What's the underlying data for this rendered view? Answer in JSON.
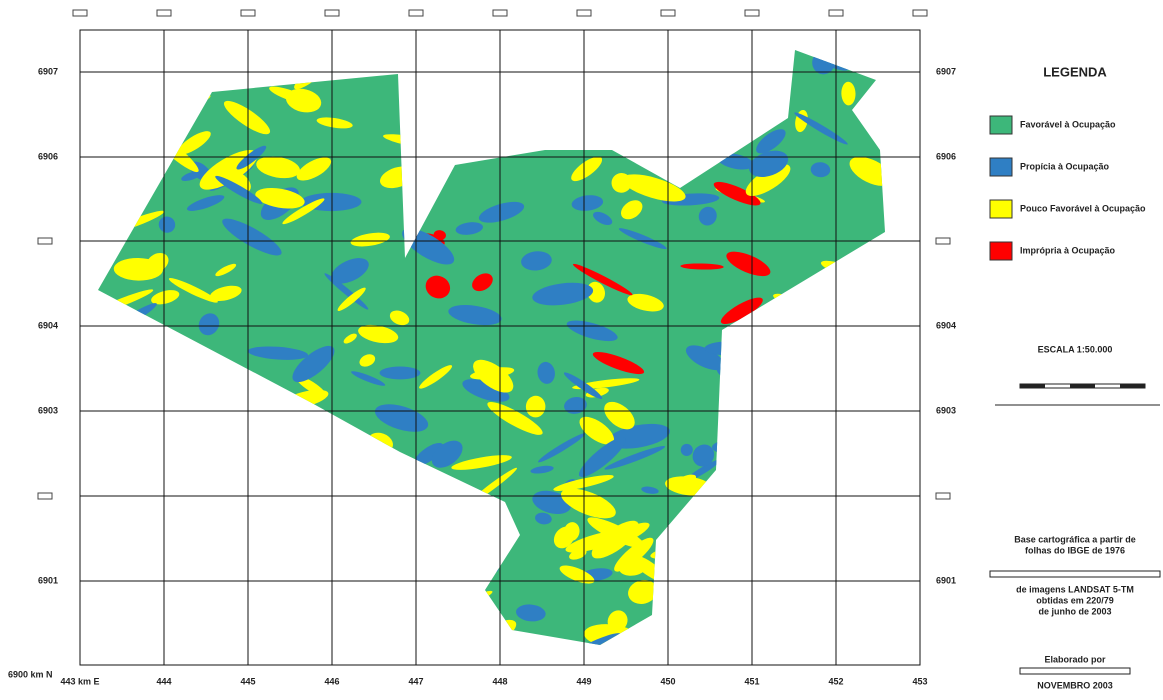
{
  "map": {
    "y_labels_left": [
      "6907",
      "6906",
      null,
      "6904",
      "6903",
      null,
      "6901",
      "6900 km N"
    ],
    "y_labels_right": [
      "6907",
      "6906",
      null,
      "6904",
      "6903",
      null,
      "6901"
    ],
    "x_labels": [
      "443 km E",
      "444",
      "445",
      "446",
      "447",
      "448",
      "449",
      "450",
      "451",
      "452",
      "453"
    ]
  },
  "legend": {
    "title": "LEGENDA",
    "items": [
      {
        "label": "Favorável à Ocupação",
        "color": "#3db77a"
      },
      {
        "label": "Propícia à Ocupação",
        "color": "#2f7fc4"
      },
      {
        "label": "Pouco Favorável à Ocupação",
        "color": "#ffff00"
      },
      {
        "label": "Imprópria à Ocupação",
        "color": "#ff0000"
      }
    ]
  },
  "scale": "ESCALA 1:50.000",
  "credits": {
    "base": [
      "Base cartográfica a partir de",
      "folhas do IBGE de 1976"
    ],
    "images": [
      "de imagens LANDSAT 5-TM",
      "obtidas em 220/79",
      "de junho de 2003"
    ],
    "author": [
      "Elaborado por",
      "NOVEMBRO 2003"
    ]
  }
}
